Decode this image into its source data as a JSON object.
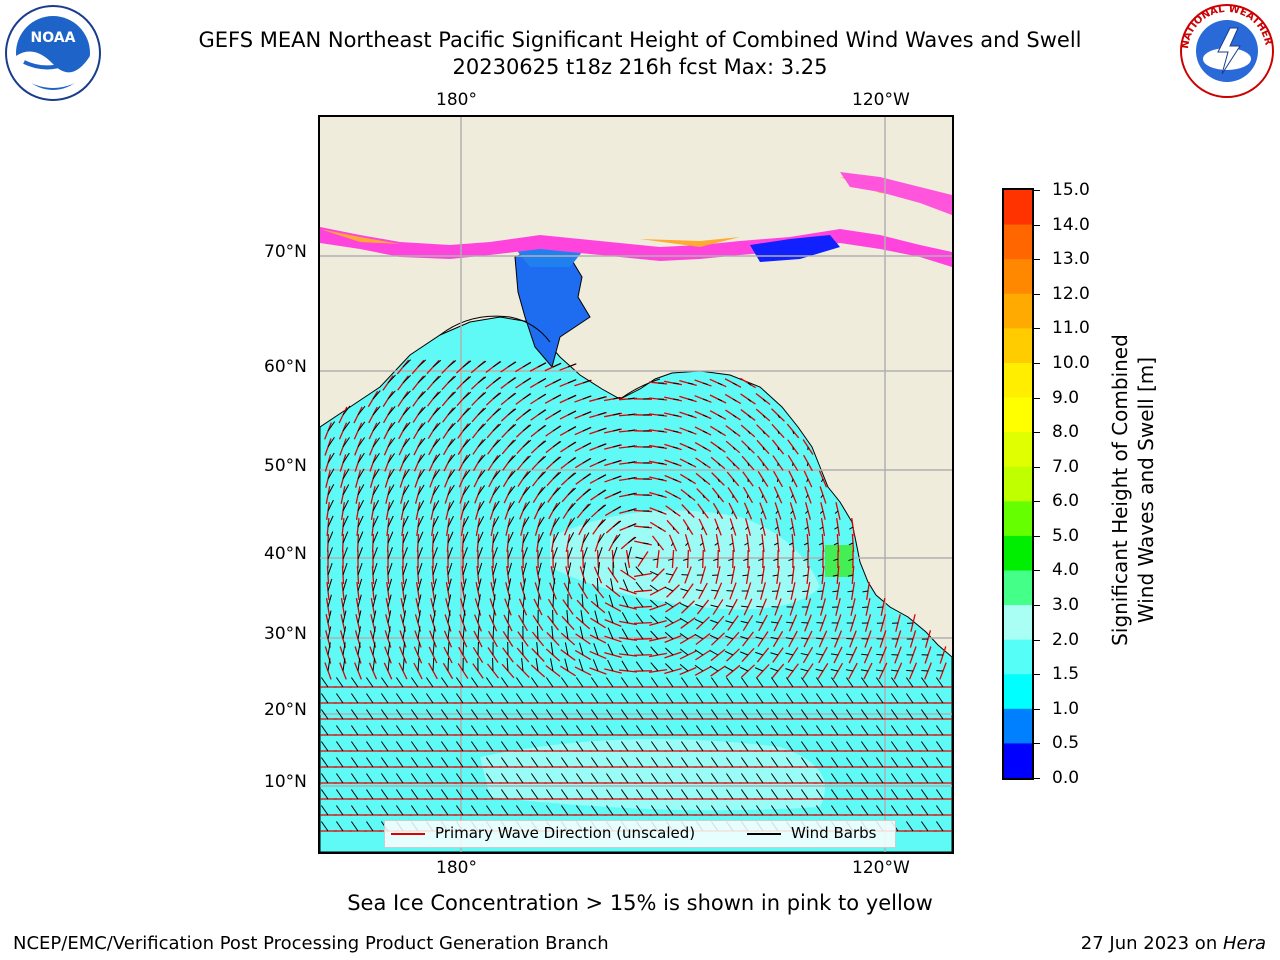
{
  "header": {
    "title_line1": "GEFS MEAN Northeast Pacific Significant Height of Combined Wind Waves and Swell",
    "title_line2": "20230625 t18z 216h fcst   Max: 3.25"
  },
  "logos": {
    "noaa": "NOAA",
    "nws": "NATIONAL WEATHER SERVICE"
  },
  "map": {
    "top_lon_labels": [
      "180°",
      "120°W"
    ],
    "bottom_lon_labels": [
      "180°",
      "120°W"
    ],
    "lat_labels": [
      "70°N",
      "60°N",
      "50°N",
      "40°N",
      "30°N",
      "20°N",
      "10°N"
    ],
    "colors": {
      "land": "#efecdc",
      "ocean": "#5ff9f6",
      "grid": "#b0b0b0",
      "wave_arrow": "#e00000",
      "barb": "#000000"
    }
  },
  "legend": {
    "wave_label": "Primary Wave Direction (unscaled)",
    "barb_label": "Wind Barbs"
  },
  "colorbar": {
    "label_line1": "Significant Height of Combined",
    "label_line2": "Wind Waves and Swell [m]",
    "ticks": [
      "15.0",
      "14.0",
      "13.0",
      "12.0",
      "11.0",
      "10.0",
      "9.0",
      "8.0",
      "7.0",
      "6.0",
      "5.0",
      "4.0",
      "3.0",
      "2.0",
      "1.5",
      "1.0",
      "0.5",
      "0.0"
    ],
    "colors": [
      "#ff0000",
      "#ff3300",
      "#ff6600",
      "#ff8800",
      "#ffaa00",
      "#ffcc00",
      "#ffee00",
      "#ffff00",
      "#e0ff00",
      "#bfff00",
      "#66ff00",
      "#00ee00",
      "#44ff88",
      "#aafff5",
      "#55fff8",
      "#00ffff",
      "#0080ff",
      "#0000ff"
    ]
  },
  "footer": {
    "ice_note": "Sea Ice Concentration > 15% is shown in pink to yellow",
    "left": "NCEP/EMC/Verification Post Processing Product Generation Branch",
    "right_prefix": "27 Jun 2023 on ",
    "right_machine": "Hera"
  }
}
